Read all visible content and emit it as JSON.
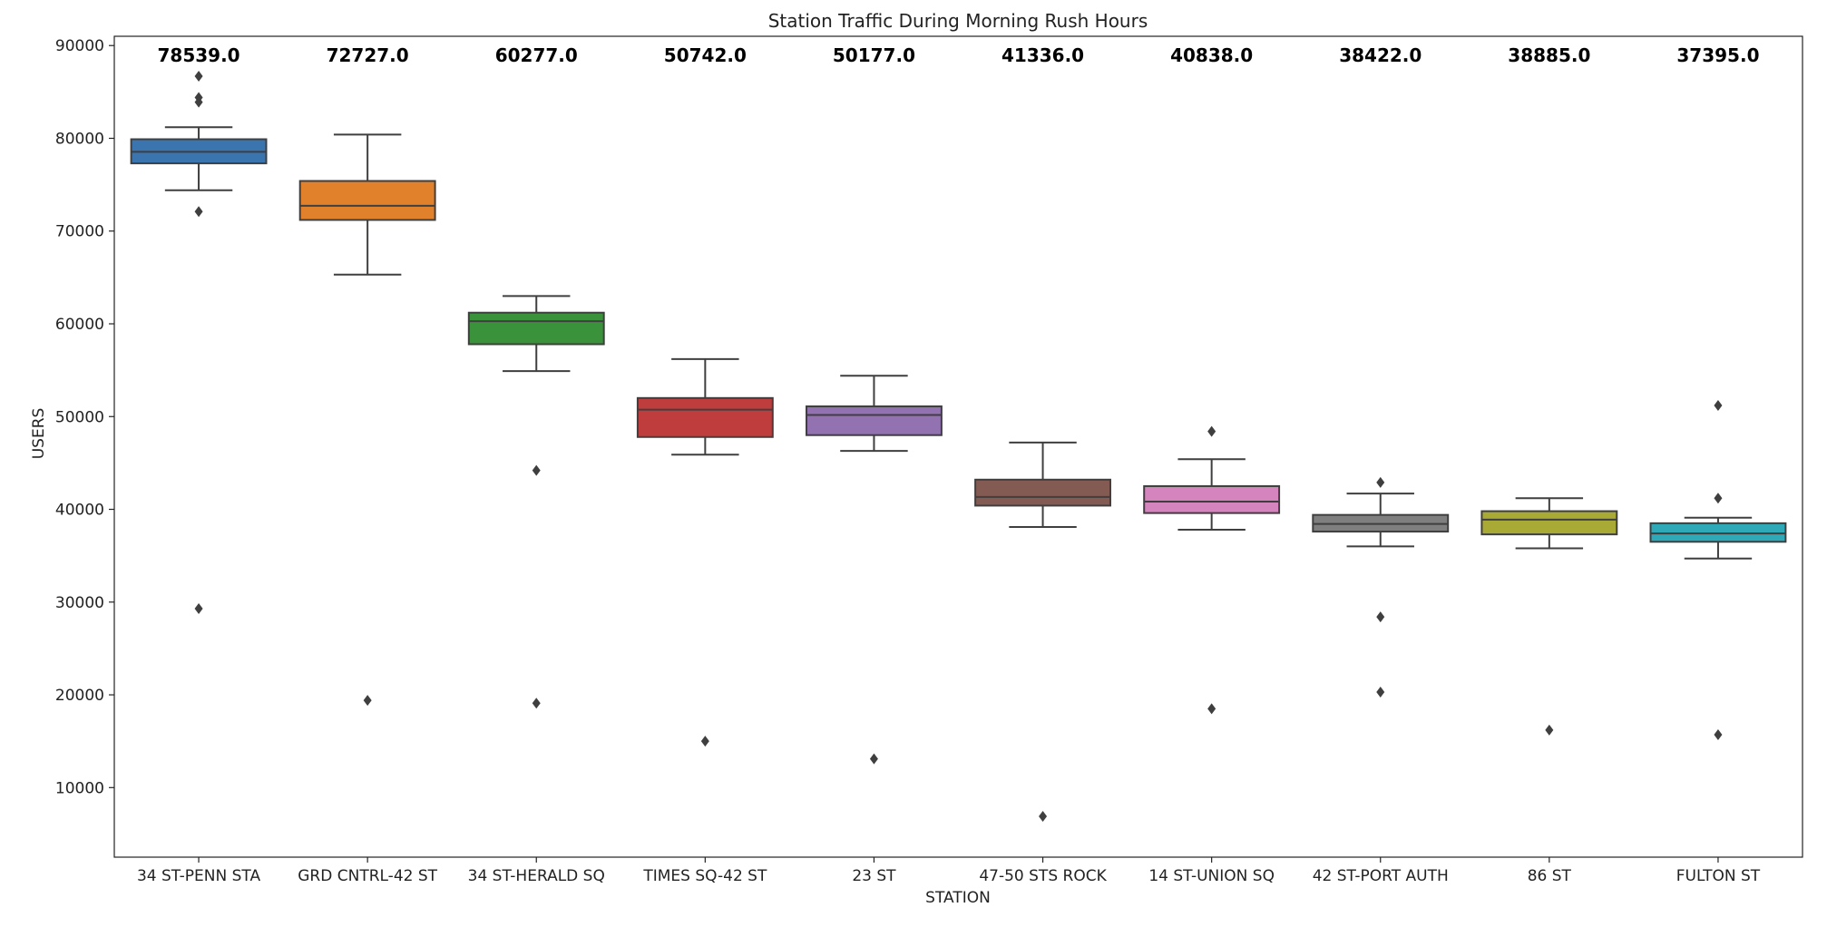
{
  "chart_data": {
    "type": "box",
    "title": "Station Traffic During Morning Rush Hours",
    "xlabel": "STATION",
    "ylabel": "USERS",
    "ylim": [
      2500,
      91000
    ],
    "yticks": [
      10000,
      20000,
      30000,
      40000,
      50000,
      60000,
      70000,
      80000,
      90000
    ],
    "ytick_labels": [
      "10000",
      "20000",
      "30000",
      "40000",
      "50000",
      "60000",
      "70000",
      "80000",
      "90000"
    ],
    "grid": false,
    "boxes": [
      {
        "category": "34 ST-PENN STA",
        "color": "#3b75af",
        "median_label": "78539.0",
        "q1": 77300,
        "median": 78539,
        "q3": 79900,
        "whisker_low": 74400,
        "whisker_high": 81200,
        "outliers": [
          86700,
          84400,
          83900,
          72100,
          29300
        ]
      },
      {
        "category": "GRD CNTRL-42 ST",
        "color": "#e1812c",
        "median_label": "72727.0",
        "q1": 71200,
        "median": 72727,
        "q3": 75400,
        "whisker_low": 65300,
        "whisker_high": 80400,
        "outliers": [
          19400
        ]
      },
      {
        "category": "34 ST-HERALD SQ",
        "color": "#3a923a",
        "median_label": "60277.0",
        "q1": 57800,
        "median": 60277,
        "q3": 61200,
        "whisker_low": 54900,
        "whisker_high": 63000,
        "outliers": [
          44200,
          19100
        ]
      },
      {
        "category": "TIMES SQ-42 ST",
        "color": "#c03d3e",
        "median_label": "50742.0",
        "q1": 47800,
        "median": 50742,
        "q3": 52000,
        "whisker_low": 45900,
        "whisker_high": 56200,
        "outliers": [
          15000
        ]
      },
      {
        "category": "23 ST",
        "color": "#9372b2",
        "median_label": "50177.0",
        "q1": 48000,
        "median": 50177,
        "q3": 51100,
        "whisker_low": 46300,
        "whisker_high": 54400,
        "outliers": [
          13100
        ]
      },
      {
        "category": "47-50 STS ROCK",
        "color": "#845b53",
        "median_label": "41336.0",
        "q1": 40400,
        "median": 41336,
        "q3": 43200,
        "whisker_low": 38100,
        "whisker_high": 47200,
        "outliers": [
          6900
        ]
      },
      {
        "category": "14 ST-UNION SQ",
        "color": "#d684bd",
        "median_label": "40838.0",
        "q1": 39600,
        "median": 40838,
        "q3": 42500,
        "whisker_low": 37800,
        "whisker_high": 45400,
        "outliers": [
          48400,
          18500
        ]
      },
      {
        "category": "42 ST-PORT AUTH",
        "color": "#7f7f7f",
        "median_label": "38422.0",
        "q1": 37600,
        "median": 38422,
        "q3": 39400,
        "whisker_low": 36000,
        "whisker_high": 41700,
        "outliers": [
          42900,
          28400,
          20300
        ]
      },
      {
        "category": "86 ST",
        "color": "#a9aa35",
        "median_label": "38885.0",
        "q1": 37300,
        "median": 38885,
        "q3": 39800,
        "whisker_low": 35800,
        "whisker_high": 41200,
        "outliers": [
          16200
        ]
      },
      {
        "category": "FULTON ST",
        "color": "#2ea9b8",
        "median_label": "37395.0",
        "q1": 36500,
        "median": 37395,
        "q3": 38500,
        "whisker_low": 34700,
        "whisker_high": 39100,
        "outliers": [
          51200,
          41200,
          15700
        ]
      }
    ]
  }
}
